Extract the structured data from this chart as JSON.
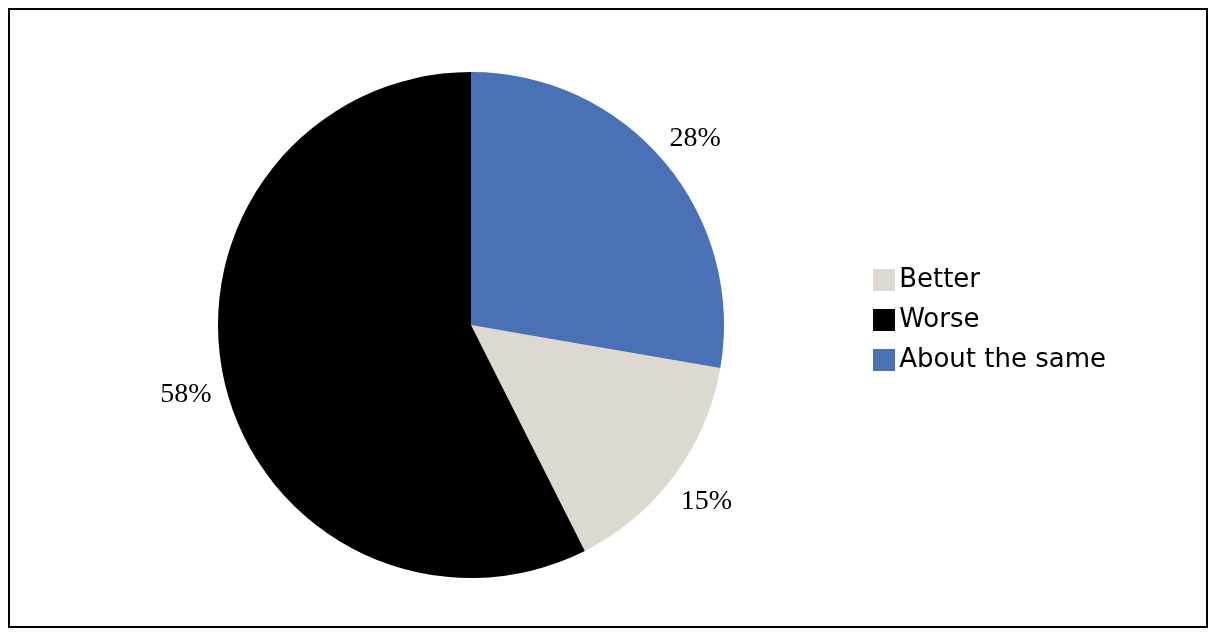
{
  "chart_data": {
    "type": "pie",
    "categories": [
      "Better",
      "Worse",
      "About the same"
    ],
    "values": [
      15,
      58,
      28
    ],
    "value_labels": [
      "15%",
      "58%",
      "28%"
    ],
    "colors": [
      "#ddd9d0",
      "#000000",
      "#4a70b5"
    ],
    "legend": "right"
  }
}
